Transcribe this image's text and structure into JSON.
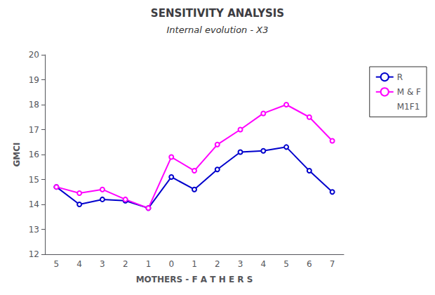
{
  "chart_data": {
    "type": "line",
    "title": "SENSITIVITY ANALYSIS",
    "subtitle": "Internal evolution - X3",
    "xlabel": "MOTHERS - F A T H E R S",
    "ylabel": "GMCI",
    "categories": [
      "5",
      "4",
      "3",
      "2",
      "1",
      "0",
      "1",
      "2",
      "3",
      "4",
      "5",
      "6",
      "7"
    ],
    "series": [
      {
        "name": "R",
        "color": "#0000CC",
        "marker": "circle",
        "values": [
          14.7,
          14.0,
          14.2,
          14.15,
          13.85,
          15.1,
          14.6,
          15.4,
          16.1,
          16.15,
          16.3,
          15.35,
          14.5
        ]
      },
      {
        "name": "M & F",
        "color": "#FF00FF",
        "marker": "circle",
        "values": [
          14.7,
          14.45,
          14.6,
          14.2,
          13.85,
          15.9,
          15.35,
          16.4,
          17.0,
          17.65,
          18.0,
          17.5,
          16.55
        ]
      },
      {
        "name": "M1F1",
        "line_style": "none",
        "values": [
          null,
          null,
          null,
          null,
          null,
          null,
          null,
          null,
          null,
          null,
          null,
          null,
          null
        ]
      }
    ],
    "ylim": [
      12,
      20
    ],
    "yticks": [
      12,
      13,
      14,
      15,
      16,
      17,
      18,
      19,
      20
    ],
    "grid": false,
    "legend": "right"
  }
}
